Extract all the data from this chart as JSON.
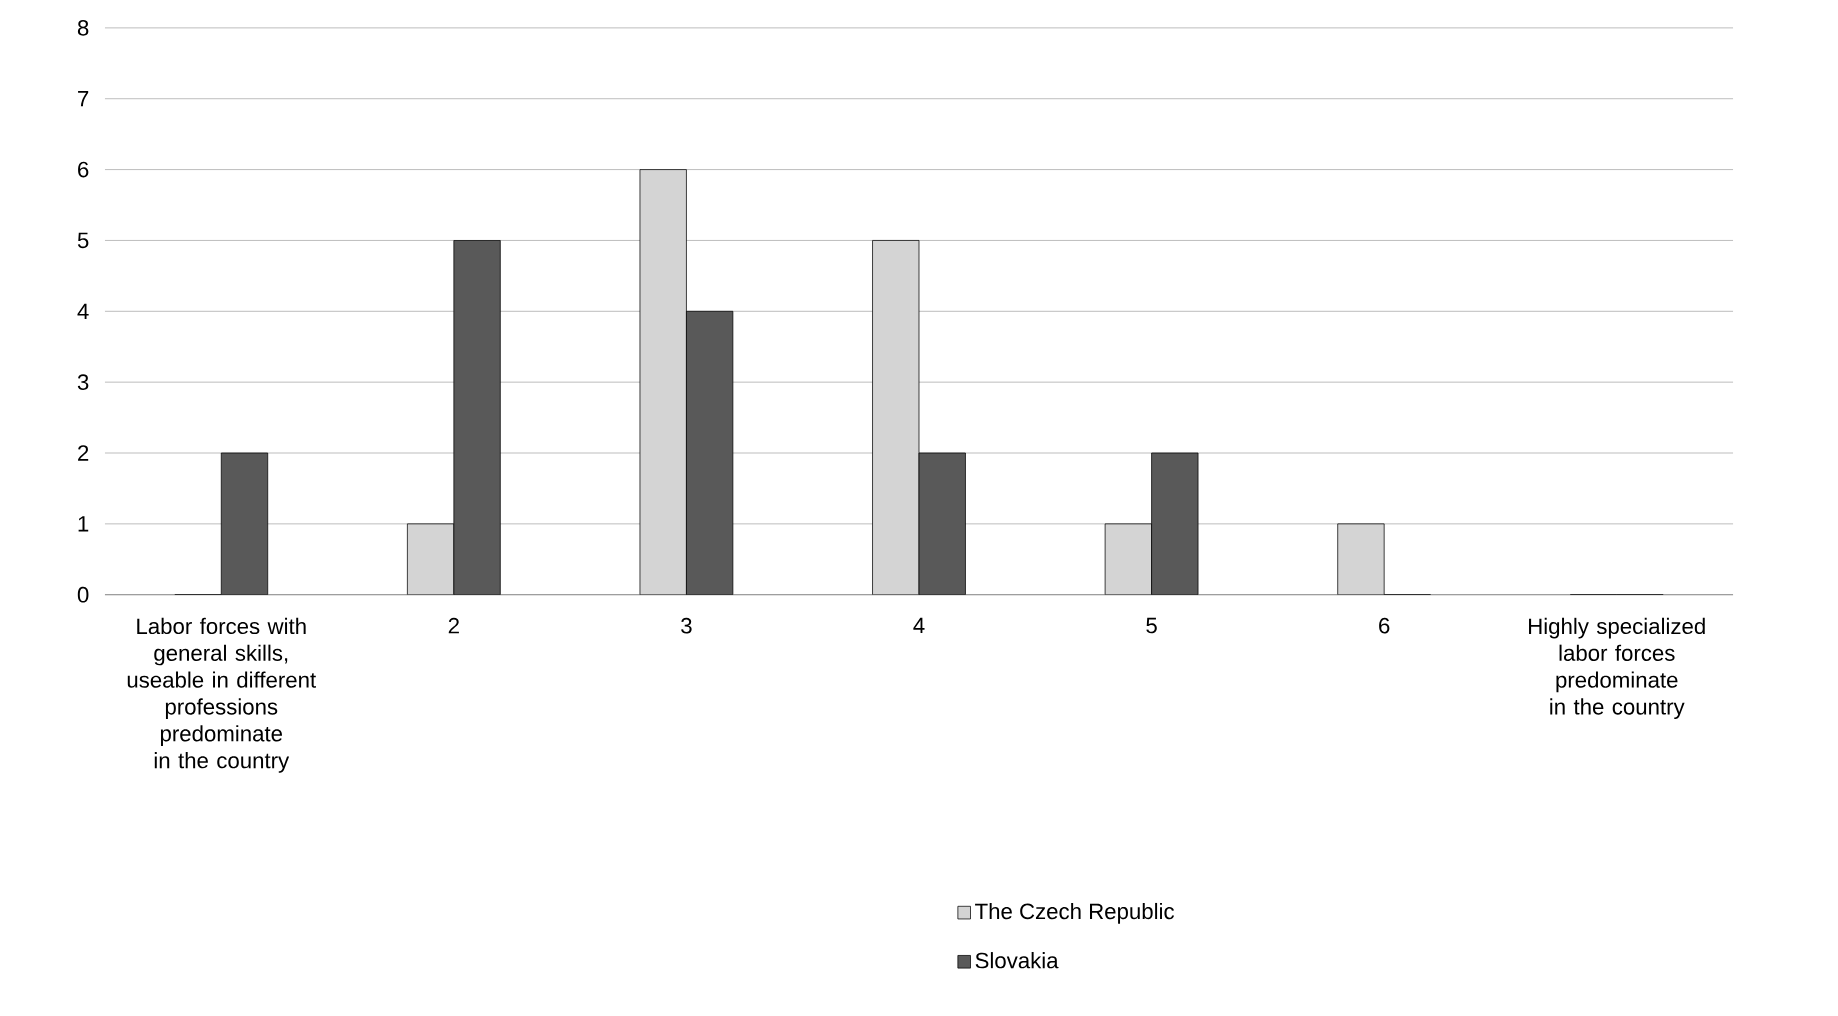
{
  "chart_data": {
    "type": "bar",
    "categories": [
      "Labor forces with general skills, useable in different professions predominate in the country",
      "2",
      "3",
      "4",
      "5",
      "6",
      "Highly specialized labor forces predominate in the country"
    ],
    "series": [
      {
        "name": "The Czech Republic",
        "color": "#d4d4d4",
        "values": [
          0,
          1,
          6,
          5,
          1,
          1,
          0
        ]
      },
      {
        "name": "Slovakia",
        "color": "#595959",
        "values": [
          2,
          5,
          4,
          2,
          2,
          0,
          0
        ]
      }
    ],
    "ylim": [
      0,
      8
    ],
    "yticks": [
      0,
      1,
      2,
      3,
      4,
      5,
      6,
      7,
      8
    ],
    "grid": "y",
    "legend": "bottom"
  }
}
